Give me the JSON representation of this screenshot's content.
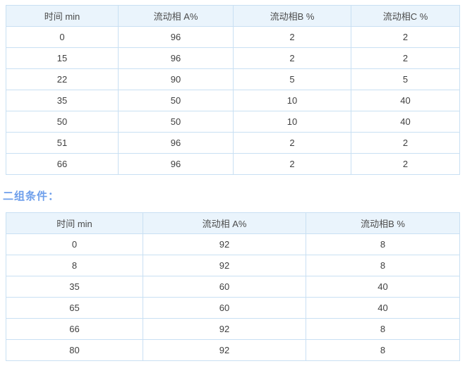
{
  "colors": {
    "table_border": "#abcfec",
    "cell_border": "#c9e0f3",
    "header_bg": "#eaf4fc",
    "text": "#3f3f3f",
    "section_label": "#6d9eeb",
    "page_bg": "#ffffff"
  },
  "section_label": "二组条件：",
  "table1": {
    "headers": [
      "时间 min",
      "流动相 A%",
      "流动相B %",
      "流动相C %"
    ],
    "rows": [
      [
        "0",
        "96",
        "2",
        "2"
      ],
      [
        "15",
        "96",
        "2",
        "2"
      ],
      [
        "22",
        "90",
        "5",
        "5"
      ],
      [
        "35",
        "50",
        "10",
        "40"
      ],
      [
        "50",
        "50",
        "10",
        "40"
      ],
      [
        "51",
        "96",
        "2",
        "2"
      ],
      [
        "66",
        "96",
        "2",
        "2"
      ]
    ]
  },
  "table2": {
    "headers": [
      "时间 min",
      "流动相 A%",
      "流动相B %"
    ],
    "rows": [
      [
        "0",
        "92",
        "8"
      ],
      [
        "8",
        "92",
        "8"
      ],
      [
        "35",
        "60",
        "40"
      ],
      [
        "65",
        "60",
        "40"
      ],
      [
        "66",
        "92",
        "8"
      ],
      [
        "80",
        "92",
        "8"
      ]
    ]
  }
}
